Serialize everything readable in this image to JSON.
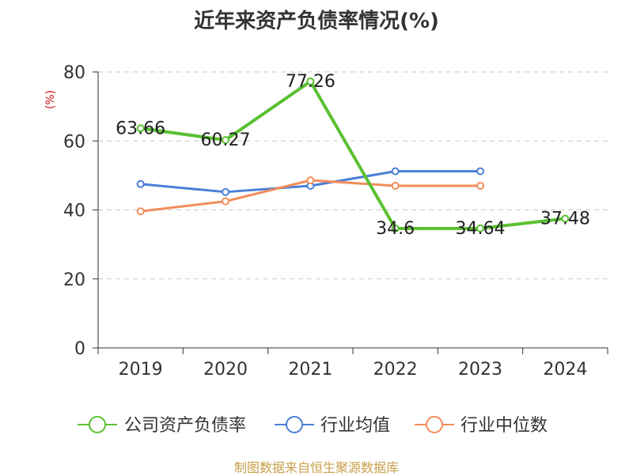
{
  "title": "近年来资产负债率情况(%)",
  "source": "制图数据来自恒生聚源数据库",
  "chart_data": {
    "type": "line",
    "title": "近年来资产负债率情况(%)",
    "ylabel": "(%)",
    "xlabel": "",
    "ylim": [
      0,
      80
    ],
    "yticks": [
      0,
      20,
      40,
      60,
      80
    ],
    "grid": "horizontal-dashed",
    "legend_position": "bottom",
    "categories": [
      "2019",
      "2020",
      "2021",
      "2022",
      "2023",
      "2024"
    ],
    "series": [
      {
        "name": "公司资产负债率",
        "color": "#5ac031",
        "values": [
          63.66,
          60.27,
          77.26,
          34.6,
          34.64,
          37.48
        ],
        "labels": [
          "63.66",
          "60.27",
          "77.26",
          "34.6",
          "34.64",
          "37.48"
        ]
      },
      {
        "name": "行业均值",
        "color": "#4a7fd6",
        "values": [
          47.5,
          45.2,
          47.0,
          51.2,
          51.2,
          null
        ]
      },
      {
        "name": "行业中位数",
        "color": "#f28c5a",
        "values": [
          39.6,
          42.5,
          48.6,
          47.0,
          47.0,
          null
        ]
      }
    ]
  }
}
